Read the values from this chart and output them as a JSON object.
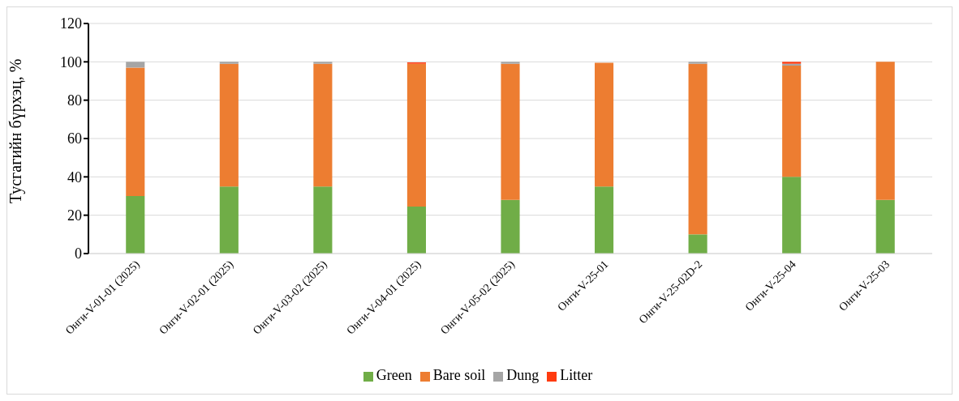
{
  "chart_data": {
    "type": "bar",
    "stacked": true,
    "ylabel": "Тусгагийн бүрхэц, %",
    "categories": [
      "Онги-V-01-01 (2025)",
      "Онги-V-02-01 (2025)",
      "Онги-V-03-02 (2025)",
      "Онги-V-04-01 (2025)",
      "Онги-V-05-02 (2025)",
      "Онги-V-25-01",
      "Онги-V-25-02D-2",
      "Онги-V-25-04",
      "Онги-V-25-03"
    ],
    "series": [
      {
        "name": "Green",
        "color": "#70ad47",
        "values": [
          30,
          35,
          35,
          24.5,
          28,
          35,
          10,
          40,
          28
        ]
      },
      {
        "name": "Bare soil",
        "color": "#ed7d31",
        "values": [
          67,
          64,
          64,
          74.5,
          71,
          64.5,
          89,
          58,
          72
        ]
      },
      {
        "name": "Dung",
        "color": "#a5a5a5",
        "values": [
          3,
          1,
          1,
          null,
          1,
          null,
          1,
          1,
          null
        ]
      },
      {
        "name": "Litter",
        "color": "#ff3b0f",
        "values": [
          0,
          0,
          0,
          0.7,
          0,
          0,
          0,
          1,
          0
        ]
      }
    ],
    "ylim": [
      0,
      120
    ],
    "yticks": [
      0,
      20,
      40,
      60,
      80,
      100,
      120
    ],
    "grid": "y",
    "legend": "bottom"
  }
}
